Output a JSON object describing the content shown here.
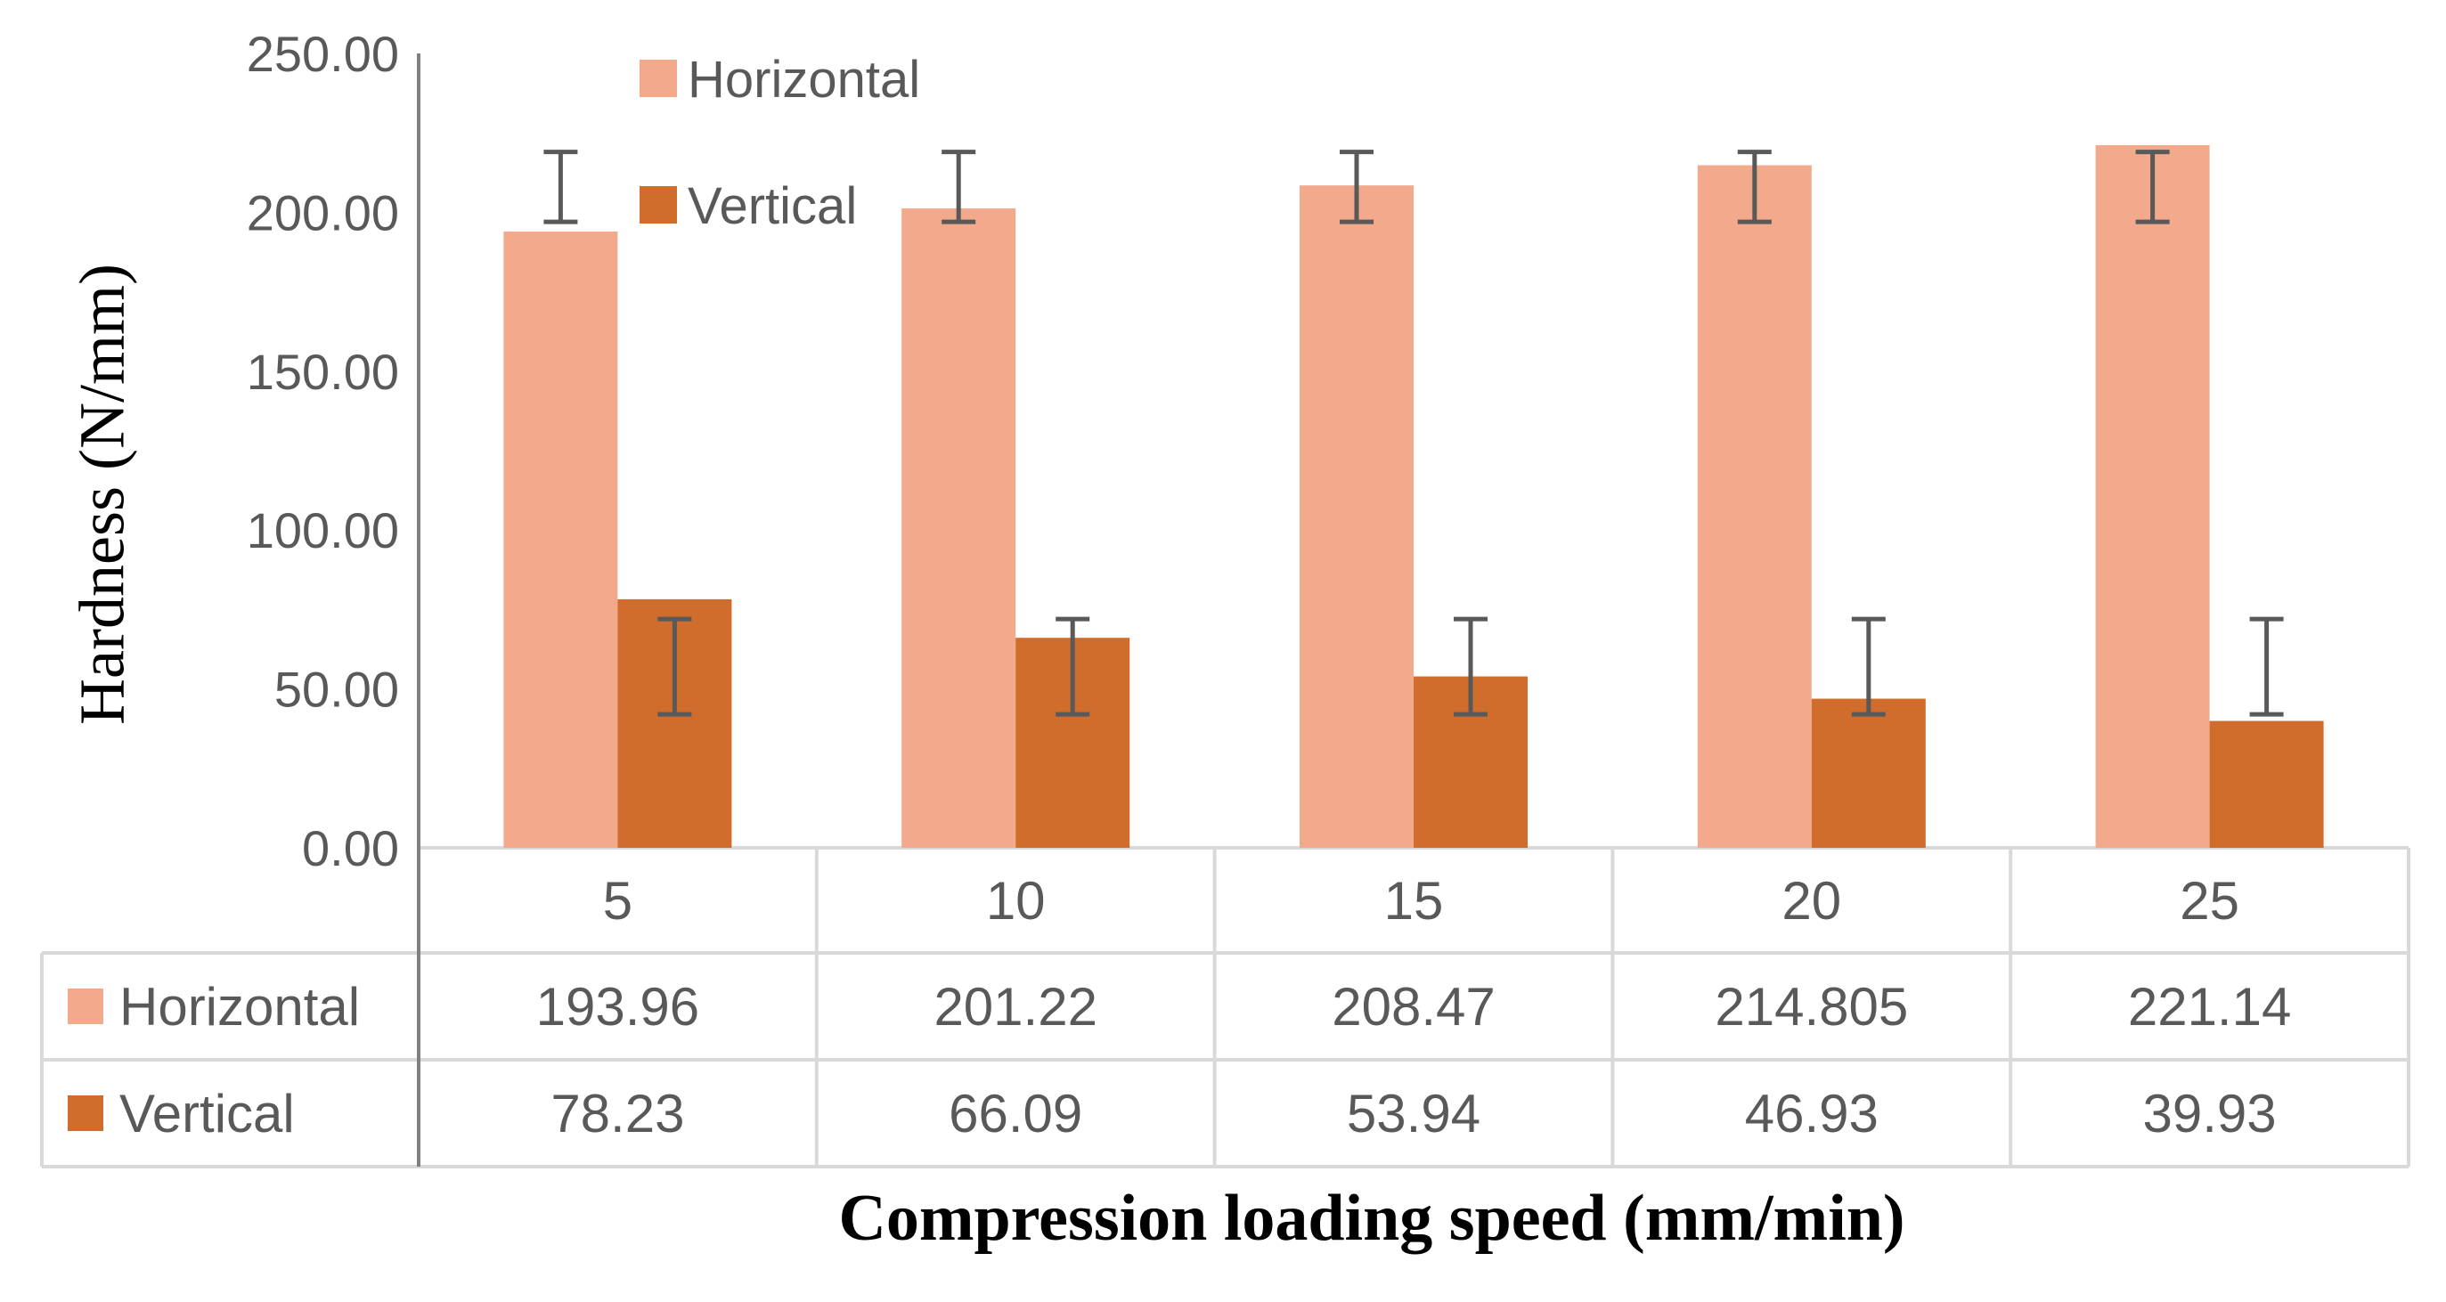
{
  "chart_data": {
    "type": "bar",
    "title": "",
    "xlabel": "Compression loading speed (mm/min)",
    "ylabel": "Hardness (N/mm)",
    "ylim": [
      0,
      250
    ],
    "yticks": [
      "0.00",
      "50.00",
      "100.00",
      "150.00",
      "200.00",
      "250.00"
    ],
    "categories": [
      "5",
      "10",
      "15",
      "20",
      "25"
    ],
    "series": [
      {
        "name": "Horizontal",
        "color": "#F2A98C",
        "values": [
          193.96,
          201.22,
          208.47,
          214.805,
          221.14
        ],
        "labels": [
          "193.96",
          "201.22",
          "208.47",
          "214.805",
          "221.14"
        ],
        "error_low": [
          197,
          197,
          197,
          197,
          197
        ],
        "error_high": [
          219,
          219,
          219,
          219,
          219
        ]
      },
      {
        "name": "Vertical",
        "color": "#D06D2C",
        "values": [
          78.23,
          66.09,
          53.94,
          46.93,
          39.93
        ],
        "labels": [
          "78.23",
          "66.09",
          "53.94",
          "46.93",
          "39.93"
        ],
        "error_low": [
          42,
          42,
          42,
          42,
          42
        ],
        "error_high": [
          72,
          72,
          72,
          72,
          72
        ]
      }
    ],
    "legend": "top-left inside plot",
    "data_table": true,
    "grid": false
  }
}
